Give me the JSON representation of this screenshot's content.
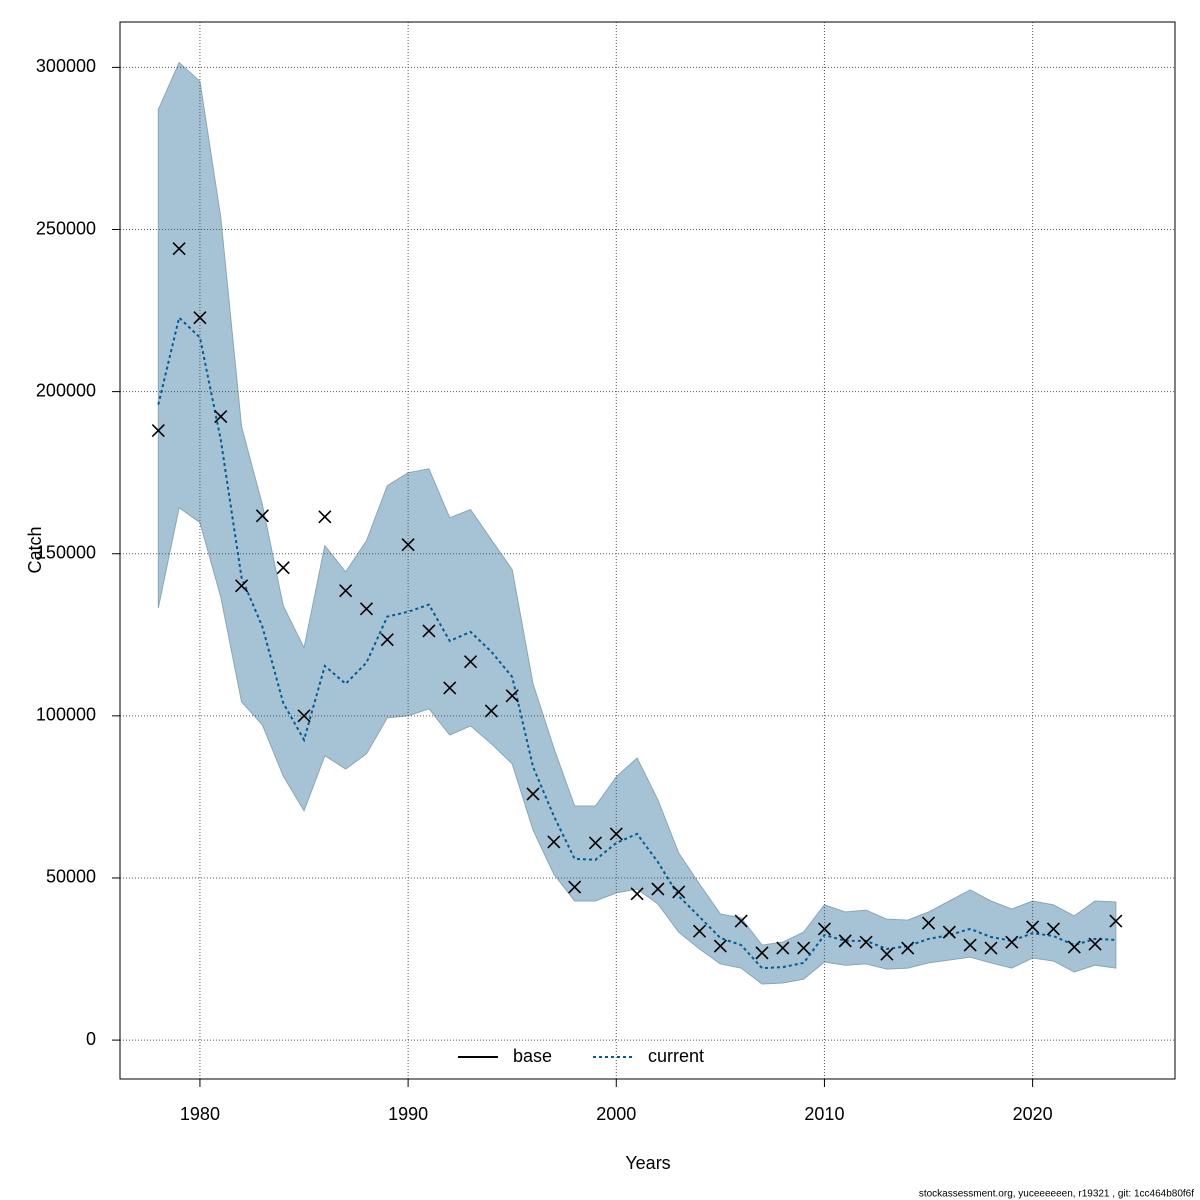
{
  "chart_data": {
    "type": "line",
    "xlabel": "Years",
    "ylabel": "Catch",
    "caption": "stockassessment.org, yuceeeeeen, r19321 , git: 1cc464b80f6f",
    "x": [
      1978,
      1979,
      1980,
      1981,
      1982,
      1983,
      1984,
      1985,
      1986,
      1987,
      1988,
      1989,
      1990,
      1991,
      1992,
      1993,
      1994,
      1995,
      1996,
      1997,
      1998,
      1999,
      2000,
      2001,
      2002,
      2003,
      2004,
      2005,
      2006,
      2007,
      2008,
      2009,
      2010,
      2011,
      2012,
      2013,
      2014,
      2015,
      2016,
      2017,
      2018,
      2019,
      2020,
      2021,
      2022,
      2023,
      2024
    ],
    "observed": {
      "marker": "x",
      "color": "#000000",
      "values": [
        188000,
        244100,
        222800,
        192300,
        140100,
        161700,
        145700,
        100000,
        161400,
        138600,
        133000,
        123500,
        152800,
        126200,
        108600,
        116700,
        101500,
        106200,
        75900,
        61100,
        47200,
        60800,
        63600,
        45100,
        46600,
        45700,
        33600,
        29000,
        36700,
        26900,
        28400,
        28400,
        34300,
        30600,
        30200,
        26500,
        28400,
        36100,
        33300,
        29300,
        28400,
        30200,
        34900,
        34300,
        28700,
        29600,
        36700
      ]
    },
    "series": [
      {
        "name": "current",
        "color": "#005b96",
        "dash": "dotted",
        "values": [
          196000,
          222800,
          216700,
          185200,
          142600,
          127500,
          104000,
          92600,
          115400,
          109900,
          116400,
          130600,
          132100,
          134300,
          123100,
          125900,
          119800,
          112000,
          84300,
          69100,
          55900,
          55600,
          60800,
          63600,
          54900,
          44400,
          38000,
          31500,
          29300,
          22200,
          22500,
          23800,
          32400,
          30600,
          30600,
          28100,
          29000,
          31200,
          32400,
          34300,
          31800,
          30600,
          33000,
          32100,
          29300,
          31200,
          30900
        ]
      }
    ],
    "band": {
      "color": "#a5c3d4",
      "lower": [
        133300,
        164200,
        159600,
        136700,
        104300,
        97200,
        81500,
        70700,
        87700,
        83600,
        88300,
        99400,
        100000,
        102200,
        94100,
        96900,
        91400,
        85200,
        64800,
        51200,
        42900,
        42900,
        45400,
        46600,
        42000,
        33300,
        28100,
        23500,
        22200,
        17300,
        17600,
        18800,
        24100,
        23100,
        23500,
        21900,
        22200,
        23800,
        24700,
        25600,
        23800,
        22200,
        25300,
        24400,
        21000,
        23100,
        22200
      ],
      "upper": [
        287000,
        301500,
        295700,
        253700,
        189200,
        165100,
        134000,
        121000,
        152500,
        144400,
        154000,
        171000,
        175000,
        176200,
        161100,
        163600,
        154300,
        145100,
        109900,
        90100,
        72200,
        72200,
        81200,
        87000,
        74100,
        57700,
        48100,
        38900,
        37700,
        29300,
        30200,
        33300,
        41700,
        39500,
        40100,
        37300,
        37000,
        39500,
        42900,
        46300,
        42900,
        40400,
        42900,
        41700,
        38300,
        42900,
        42600
      ]
    },
    "legend": [
      {
        "name": "base",
        "color": "#000000",
        "dash": "solid"
      },
      {
        "name": "current",
        "color": "#005b96",
        "dash": "dotted"
      }
    ],
    "legend_position": "bottom",
    "xlim": [
      1976.16,
      2026.84
    ],
    "xticks": [
      1980,
      1990,
      2000,
      2010,
      2020
    ],
    "ylim": [
      -12000,
      314000
    ],
    "yticks": [
      0,
      50000,
      100000,
      150000,
      200000,
      250000,
      300000
    ],
    "grid": true
  }
}
